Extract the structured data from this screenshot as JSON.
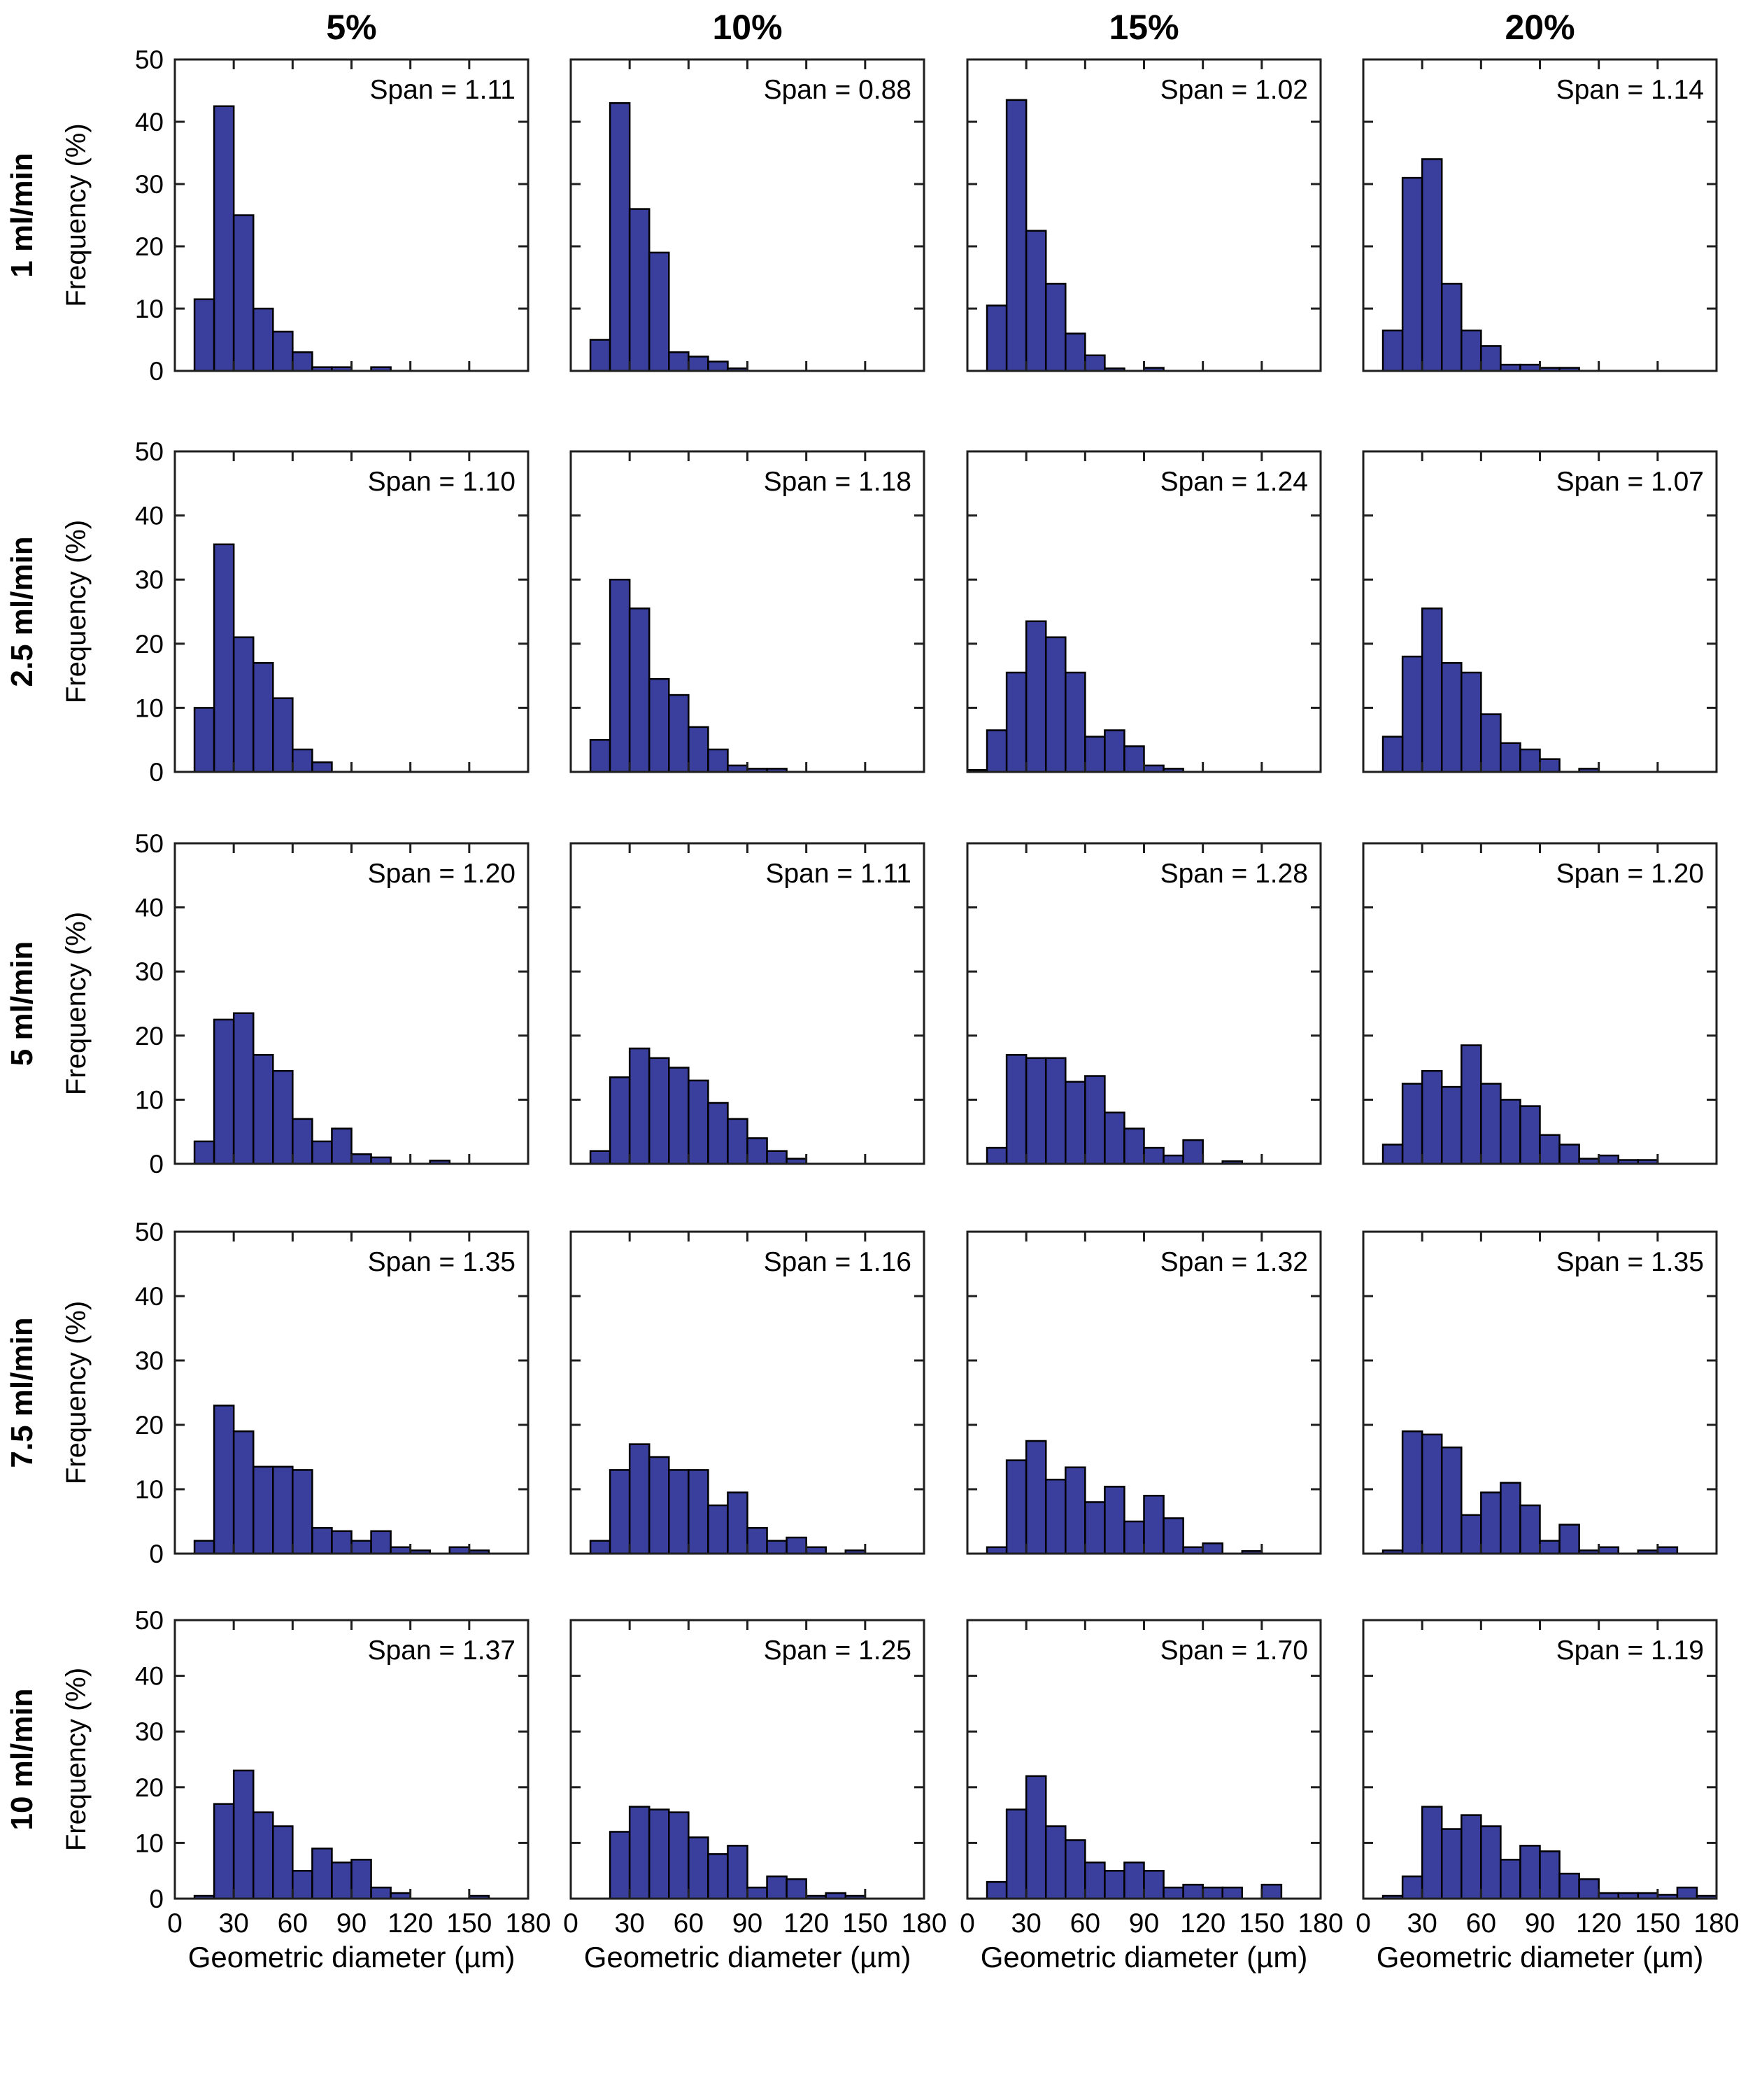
{
  "figure": {
    "column_titles": [
      "5%",
      "10%",
      "15%",
      "20%"
    ],
    "row_labels": [
      "1 ml/min",
      "2.5 ml/min",
      "5 ml/min",
      "7.5 ml/min",
      "10 ml/min"
    ],
    "x_axis_label": "Geometric diameter (µm)",
    "y_axis_label": "Frequency (%)",
    "bar_color": "#3A3E9C",
    "bar_edge_color": "#000000",
    "axis_color": "#1F1F1F"
  },
  "chart_data": {
    "type": "bar",
    "chart_kind": "histogram-grid",
    "grid": "off",
    "legend": "none",
    "xlabel": "Geometric diameter (µm)",
    "ylabel": "Frequency (%)",
    "xlim": [
      0,
      180
    ],
    "ylim": [
      0,
      50
    ],
    "xticks": [
      0,
      30,
      60,
      90,
      120,
      150,
      180
    ],
    "yticks": [
      0,
      10,
      20,
      30,
      40,
      50
    ],
    "bin_width": 10,
    "columns": [
      "5%",
      "10%",
      "15%",
      "20%"
    ],
    "rows": [
      "1 ml/min",
      "2.5 ml/min",
      "5 ml/min",
      "7.5 ml/min",
      "10 ml/min"
    ],
    "subplots": [
      [
        {
          "row": "1 ml/min",
          "column": "5%",
          "span": 1.11,
          "span_label": "Span = 1.11",
          "bin_start": 10,
          "frequencies": [
            11.5,
            42.5,
            25,
            10,
            6.3,
            3,
            0.6,
            0.6,
            0,
            0.6
          ]
        },
        {
          "row": "1 ml/min",
          "column": "10%",
          "span": 0.88,
          "span_label": "Span = 0.88",
          "bin_start": 10,
          "frequencies": [
            5,
            43,
            26,
            19,
            3,
            2.3,
            1.5,
            0.4
          ]
        },
        {
          "row": "1 ml/min",
          "column": "15%",
          "span": 1.02,
          "span_label": "Span = 1.02",
          "bin_start": 10,
          "frequencies": [
            10.5,
            43.5,
            22.5,
            14,
            6,
            2.5,
            0.4,
            0,
            0.5
          ]
        },
        {
          "row": "1 ml/min",
          "column": "20%",
          "span": 1.14,
          "span_label": "Span = 1.14",
          "bin_start": 10,
          "frequencies": [
            6.5,
            31,
            34,
            14,
            6.5,
            4,
            1,
            1,
            0.5,
            0.5
          ]
        }
      ],
      [
        {
          "row": "2.5 ml/min",
          "column": "5%",
          "span": 1.1,
          "span_label": "Span = 1.10",
          "bin_start": 10,
          "frequencies": [
            10,
            35.5,
            21,
            17,
            11.5,
            3.5,
            1.5
          ]
        },
        {
          "row": "2.5 ml/min",
          "column": "10%",
          "span": 1.18,
          "span_label": "Span = 1.18",
          "bin_start": 10,
          "frequencies": [
            5,
            30,
            25.5,
            14.5,
            12,
            7,
            3.5,
            1,
            0.5,
            0.5
          ]
        },
        {
          "row": "2.5 ml/min",
          "column": "15%",
          "span": 1.24,
          "span_label": "Span = 1.24",
          "bin_start": 0,
          "frequencies": [
            0.3,
            6.5,
            15.5,
            23.5,
            21,
            15.5,
            5.5,
            6.5,
            4,
            1,
            0.5
          ]
        },
        {
          "row": "2.5 ml/min",
          "column": "20%",
          "span": 1.07,
          "span_label": "Span = 1.07",
          "bin_start": 10,
          "frequencies": [
            5.5,
            18,
            25.5,
            17,
            15.5,
            9,
            4.5,
            3.5,
            2,
            0,
            0.5
          ]
        }
      ],
      [
        {
          "row": "5 ml/min",
          "column": "5%",
          "span": 1.2,
          "span_label": "Span = 1.20",
          "bin_start": 10,
          "frequencies": [
            3.5,
            22.5,
            23.5,
            17,
            14.5,
            7,
            3.5,
            5.5,
            1.5,
            1,
            0,
            0,
            0.5
          ]
        },
        {
          "row": "5 ml/min",
          "column": "10%",
          "span": 1.11,
          "span_label": "Span = 1.11",
          "bin_start": 10,
          "frequencies": [
            2,
            13.5,
            18,
            16.5,
            15,
            13,
            9.5,
            7,
            4,
            2,
            0.8
          ]
        },
        {
          "row": "5 ml/min",
          "column": "15%",
          "span": 1.28,
          "span_label": "Span = 1.28",
          "bin_start": 10,
          "frequencies": [
            2.5,
            17,
            16.5,
            16.5,
            12.8,
            13.7,
            8,
            5.5,
            2.5,
            1.3,
            3.7,
            0,
            0.4
          ]
        },
        {
          "row": "5 ml/min",
          "column": "20%",
          "span": 1.2,
          "span_label": "Span = 1.20",
          "bin_start": 10,
          "frequencies": [
            3,
            12.5,
            14.5,
            12,
            18.5,
            12.5,
            10,
            9,
            4.5,
            3,
            0.8,
            1.3,
            0.6,
            0.6
          ]
        }
      ],
      [
        {
          "row": "7.5 ml/min",
          "column": "5%",
          "span": 1.35,
          "span_label": "Span = 1.35",
          "bin_start": 10,
          "frequencies": [
            2,
            23,
            19,
            13.5,
            13.5,
            13,
            4,
            3.5,
            2,
            3.5,
            1,
            0.5,
            0,
            1,
            0.5
          ]
        },
        {
          "row": "7.5 ml/min",
          "column": "10%",
          "span": 1.16,
          "span_label": "Span = 1.16",
          "bin_start": 10,
          "frequencies": [
            2,
            13,
            17,
            15,
            13,
            13,
            7.5,
            9.5,
            4,
            2,
            2.5,
            1,
            0,
            0.5
          ]
        },
        {
          "row": "7.5 ml/min",
          "column": "15%",
          "span": 1.32,
          "span_label": "Span = 1.32",
          "bin_start": 10,
          "frequencies": [
            1,
            14.5,
            17.5,
            11.5,
            13.4,
            8,
            10.4,
            5,
            9,
            5.5,
            1,
            1.6,
            0,
            0.4
          ]
        },
        {
          "row": "7.5 ml/min",
          "column": "20%",
          "span": 1.35,
          "span_label": "Span = 1.35",
          "bin_start": 10,
          "frequencies": [
            0.5,
            19,
            18.5,
            16.5,
            6,
            9.5,
            11,
            7.5,
            2,
            4.5,
            0.5,
            1,
            0,
            0.5,
            1
          ]
        }
      ],
      [
        {
          "row": "10 ml/min",
          "column": "5%",
          "span": 1.37,
          "span_label": "Span = 1.37",
          "bin_start": 10,
          "frequencies": [
            0.5,
            17,
            23,
            15.5,
            13,
            5,
            9,
            6.5,
            7,
            2,
            1,
            0,
            0,
            0,
            0.5
          ]
        },
        {
          "row": "10 ml/min",
          "column": "10%",
          "span": 1.25,
          "span_label": "Span = 1.25",
          "bin_start": 20,
          "frequencies": [
            12,
            16.5,
            16,
            15.5,
            11,
            8,
            9.5,
            2,
            4,
            3.5,
            0.5,
            1,
            0.5
          ]
        },
        {
          "row": "10 ml/min",
          "column": "15%",
          "span": 1.7,
          "span_label": "Span = 1.70",
          "bin_start": 10,
          "frequencies": [
            3,
            16,
            22,
            13,
            10.5,
            6.5,
            5,
            6.5,
            5,
            2,
            2.5,
            2,
            2,
            0,
            2.5
          ]
        },
        {
          "row": "10 ml/min",
          "column": "20%",
          "span": 1.19,
          "span_label": "Span = 1.19",
          "bin_start": 10,
          "frequencies": [
            0.5,
            4,
            16.5,
            12.5,
            15,
            13,
            7,
            9.5,
            8.5,
            4.5,
            3.5,
            1,
            1,
            1,
            0.7,
            2,
            0.5
          ]
        }
      ]
    ]
  }
}
